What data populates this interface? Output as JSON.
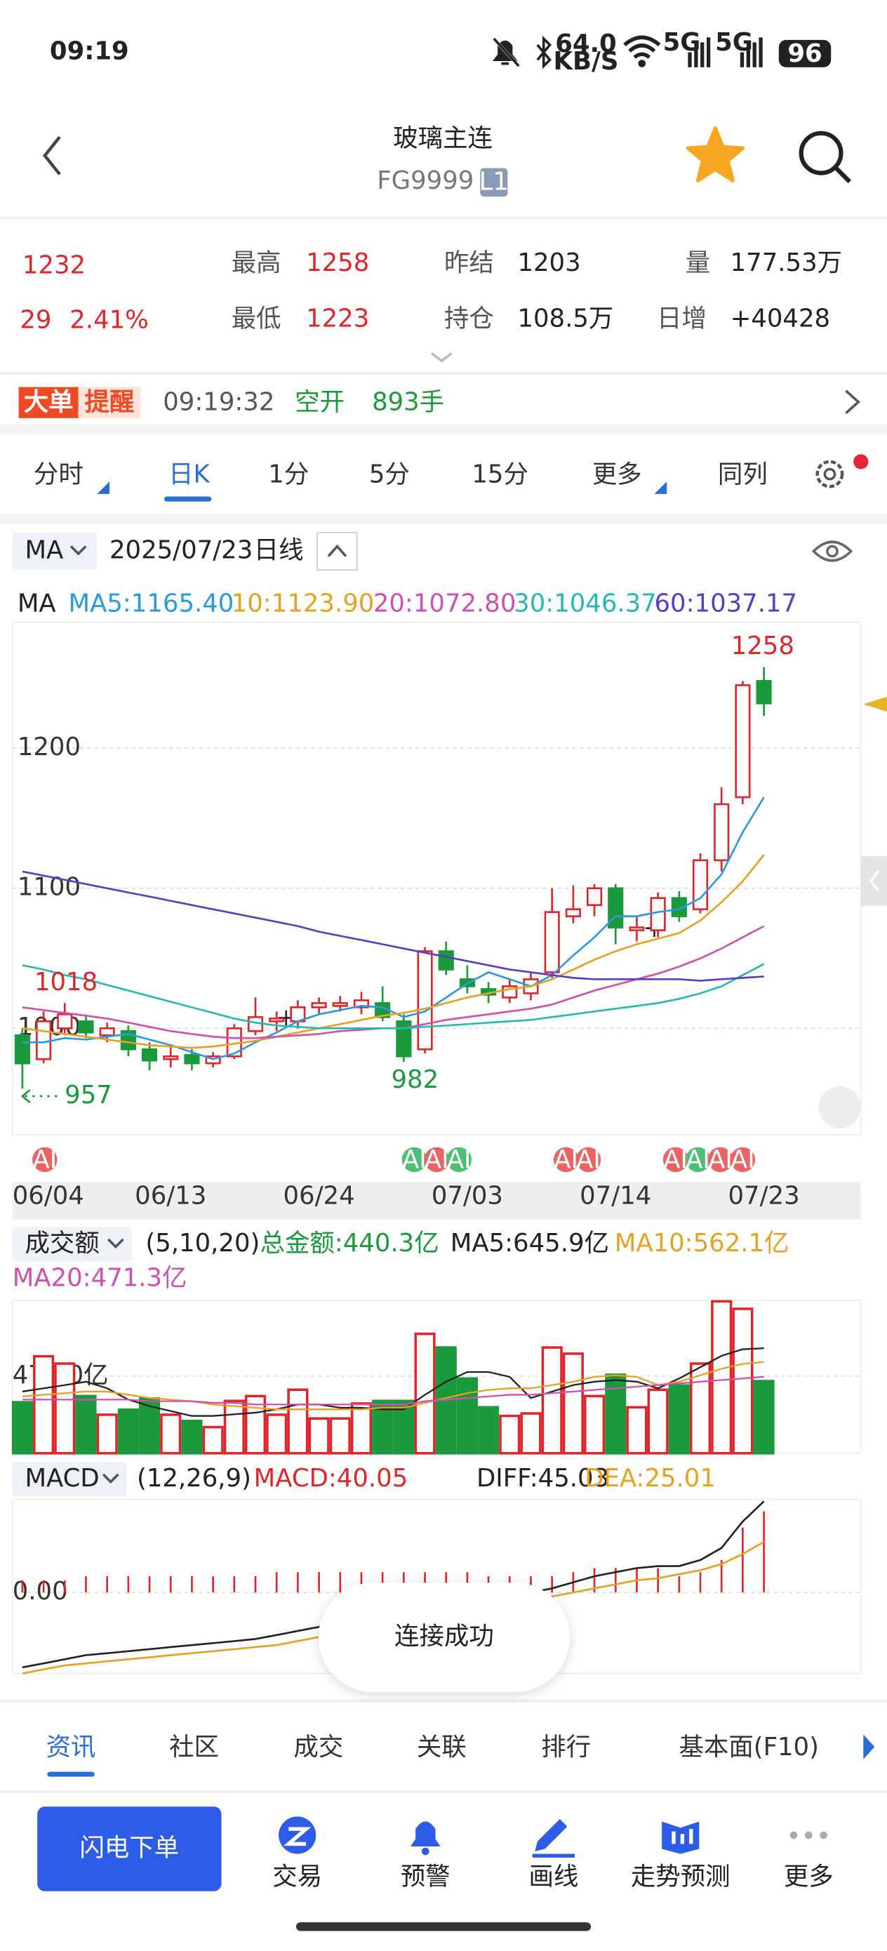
{
  "status": {
    "time": "09:19",
    "speed": "64.0",
    "speed_unit": "KB/S",
    "net1": "5G",
    "net2": "5G",
    "battery": "96"
  },
  "header": {
    "title": "玻璃主连",
    "code": "FG9999",
    "badge": "L1"
  },
  "quote": {
    "price": "1232",
    "change": "29",
    "change_pct": "2.41%",
    "fields": [
      {
        "label": "最高",
        "value": "1258",
        "color": "#e0252b"
      },
      {
        "label": "最低",
        "value": "1223",
        "color": "#e0252b"
      },
      {
        "label": "昨结",
        "value": "1203",
        "color": "#222222"
      },
      {
        "label": "持仓",
        "value": "108.5万",
        "color": "#222222"
      },
      {
        "label": "量",
        "value": "177.53万",
        "color": "#222222"
      },
      {
        "label": "日增",
        "value": "+40428",
        "color": "#222222"
      }
    ]
  },
  "alert": {
    "tag1": "大单",
    "tag2": "提醒",
    "time": "09:19:32",
    "action": "空开",
    "volume": "893手"
  },
  "periods": {
    "items": [
      "分时",
      "日K",
      "1分",
      "5分",
      "15分",
      "更多",
      "同列"
    ],
    "active": 1
  },
  "kline_bar": {
    "indicator": "MA",
    "date": "2025/07/23",
    "kind": "日线",
    "legend_label": "MA"
  },
  "chart_data": [
    {
      "type": "candlestick",
      "up_color": "#e0252b",
      "down_color": "#1a9a3c",
      "grid": true,
      "categories": [
        "06/04",
        null,
        null,
        null,
        null,
        null,
        null,
        "06/13",
        null,
        null,
        null,
        null,
        null,
        null,
        "06/24",
        null,
        null,
        null,
        null,
        null,
        null,
        "07/03",
        null,
        null,
        null,
        null,
        null,
        null,
        "07/14",
        null,
        null,
        null,
        null,
        null,
        null,
        "07/23"
      ],
      "candles": [
        {
          "open": 995,
          "high": 1000,
          "low": 957,
          "close": 975
        },
        {
          "open": 978,
          "high": 1012,
          "low": 975,
          "close": 1005
        },
        {
          "open": 1000,
          "high": 1018,
          "low": 995,
          "close": 1010
        },
        {
          "open": 1005,
          "high": 1010,
          "low": 993,
          "close": 997
        },
        {
          "open": 995,
          "high": 1004,
          "low": 990,
          "close": 1000
        },
        {
          "open": 998,
          "high": 1002,
          "low": 980,
          "close": 985
        },
        {
          "open": 985,
          "high": 990,
          "low": 970,
          "close": 977
        },
        {
          "open": 978,
          "high": 988,
          "low": 972,
          "close": 980
        },
        {
          "open": 981,
          "high": 985,
          "low": 970,
          "close": 975
        },
        {
          "open": 975,
          "high": 983,
          "low": 972,
          "close": 980
        },
        {
          "open": 980,
          "high": 1003,
          "low": 978,
          "close": 1000
        },
        {
          "open": 998,
          "high": 1022,
          "low": 995,
          "close": 1008
        },
        {
          "open": 1005,
          "high": 1012,
          "low": 998,
          "close": 1007
        },
        {
          "open": 1005,
          "high": 1020,
          "low": 1000,
          "close": 1015
        },
        {
          "open": 1015,
          "high": 1022,
          "low": 1010,
          "close": 1018
        },
        {
          "open": 1016,
          "high": 1023,
          "low": 1012,
          "close": 1018
        },
        {
          "open": 1015,
          "high": 1026,
          "low": 1010,
          "close": 1020
        },
        {
          "open": 1018,
          "high": 1030,
          "low": 1005,
          "close": 1008
        },
        {
          "open": 1005,
          "high": 1010,
          "low": 976,
          "close": 980
        },
        {
          "open": 985,
          "high": 1058,
          "low": 982,
          "close": 1055
        },
        {
          "open": 1055,
          "high": 1062,
          "low": 1038,
          "close": 1042
        },
        {
          "open": 1035,
          "high": 1045,
          "low": 1025,
          "close": 1030
        },
        {
          "open": 1028,
          "high": 1033,
          "low": 1018,
          "close": 1024
        },
        {
          "open": 1022,
          "high": 1035,
          "low": 1018,
          "close": 1030
        },
        {
          "open": 1025,
          "high": 1040,
          "low": 1020,
          "close": 1035
        },
        {
          "open": 1040,
          "high": 1100,
          "low": 1036,
          "close": 1083
        },
        {
          "open": 1080,
          "high": 1102,
          "low": 1075,
          "close": 1085
        },
        {
          "open": 1088,
          "high": 1103,
          "low": 1080,
          "close": 1100
        },
        {
          "open": 1100,
          "high": 1103,
          "low": 1060,
          "close": 1072
        },
        {
          "open": 1070,
          "high": 1080,
          "low": 1062,
          "close": 1072
        },
        {
          "open": 1070,
          "high": 1097,
          "low": 1065,
          "close": 1093
        },
        {
          "open": 1093,
          "high": 1098,
          "low": 1076,
          "close": 1080
        },
        {
          "open": 1085,
          "high": 1125,
          "low": 1082,
          "close": 1120
        },
        {
          "open": 1120,
          "high": 1172,
          "low": 1112,
          "close": 1160
        },
        {
          "open": 1165,
          "high": 1248,
          "low": 1160,
          "close": 1245
        },
        {
          "open": 1248,
          "high": 1258,
          "low": 1223,
          "close": 1232
        }
      ],
      "series": [
        {
          "name": "MA5:1165.40",
          "color": "#2a9ae0",
          "values": [
            990,
            990,
            993,
            992,
            994,
            996,
            992,
            988,
            983,
            978,
            982,
            990,
            997,
            1005,
            1010,
            1013,
            1016,
            1015,
            1008,
            1012,
            1022,
            1032,
            1040,
            1035,
            1030,
            1038,
            1052,
            1065,
            1080,
            1080,
            1083,
            1085,
            1093,
            1110,
            1140,
            1165
          ]
        },
        {
          "name": "10:1123.90",
          "color": "#e8a020",
          "values": [
            1000,
            998,
            996,
            994,
            992,
            990,
            988,
            987,
            986,
            987,
            989,
            991,
            994,
            997,
            1000,
            1003,
            1006,
            1009,
            1011,
            1014,
            1018,
            1022,
            1025,
            1028,
            1030,
            1035,
            1042,
            1049,
            1055,
            1060,
            1064,
            1068,
            1077,
            1090,
            1105,
            1124
          ]
        },
        {
          "name": "20:1072.80",
          "color": "#d14fb0",
          "values": [
            1015,
            1013,
            1011,
            1009,
            1007,
            1004,
            1001,
            998,
            996,
            994,
            993,
            993,
            994,
            995,
            996,
            998,
            999,
            1000,
            1000,
            1003,
            1006,
            1008,
            1010,
            1012,
            1014,
            1017,
            1022,
            1027,
            1031,
            1035,
            1039,
            1044,
            1050,
            1057,
            1065,
            1073
          ]
        },
        {
          "name": "30:1046.37",
          "color": "#27b9b0",
          "values": [
            1045,
            1042,
            1038,
            1035,
            1031,
            1027,
            1023,
            1019,
            1015,
            1011,
            1007,
            1004,
            1002,
            1001,
            1000,
            1000,
            1000,
            1000,
            1000,
            1001,
            1002,
            1003,
            1004,
            1005,
            1006,
            1008,
            1010,
            1012,
            1014,
            1016,
            1018,
            1021,
            1025,
            1030,
            1038,
            1046
          ]
        },
        {
          "name": "60:1037.17",
          "color": "#5a3cc8",
          "values": [
            1112,
            1109,
            1106,
            1103,
            1100,
            1097,
            1094,
            1091,
            1088,
            1085,
            1082,
            1079,
            1076,
            1073,
            1069,
            1066,
            1063,
            1060,
            1057,
            1054,
            1051,
            1048,
            1045,
            1042,
            1040,
            1038,
            1036,
            1035,
            1035,
            1035,
            1035,
            1035,
            1034,
            1035,
            1036,
            1037
          ]
        }
      ],
      "ylim": [
        924,
        1290
      ],
      "yticks": [
        1000,
        1100,
        1200
      ],
      "ai_badges": [
        {
          "label": "AI",
          "color": "#ea6464"
        },
        {
          "label": "AI",
          "color": "#4fbf78"
        },
        {
          "label": "AI",
          "color": "#ea6464"
        },
        {
          "label": "AI",
          "color": "#4fbf78"
        },
        {
          "label": "AI",
          "color": "#ea6464"
        },
        {
          "label": "AI",
          "color": "#ea6464"
        },
        {
          "label": "AI",
          "color": "#ea6464"
        },
        {
          "label": "AI",
          "color": "#4fbf78"
        },
        {
          "label": "AI",
          "color": "#ea6464"
        },
        {
          "label": "AI",
          "color": "#ea6464"
        }
      ]
    },
    {
      "type": "bar",
      "title": "成交额",
      "params": "(5,10,20)",
      "total": "总金额:440.3亿",
      "values": [
        314,
        597,
        552,
        352,
        237,
        268,
        337,
        237,
        199,
        161,
        322,
        352,
        237,
        391,
        214,
        214,
        306,
        322,
        322,
        735,
        651,
        460,
        283,
        230,
        245,
        651,
        613,
        352,
        483,
        283,
        391,
        417,
        552,
        935,
        889,
        444
      ],
      "series": [
        {
          "name": "MA5:645.9亿",
          "color": "#222222",
          "values": [
            380,
            400,
            420,
            440,
            400,
            330,
            290,
            260,
            230,
            230,
            240,
            250,
            270,
            300,
            300,
            280,
            280,
            270,
            270,
            360,
            440,
            500,
            500,
            470,
            340,
            380,
            420,
            440,
            450,
            440,
            400,
            460,
            530,
            600,
            640,
            646
          ]
        },
        {
          "name": "MA10:562.1亿",
          "color": "#e8a020",
          "values": [
            350,
            360,
            370,
            380,
            380,
            360,
            340,
            330,
            320,
            300,
            290,
            280,
            270,
            270,
            270,
            270,
            270,
            280,
            280,
            310,
            340,
            370,
            390,
            400,
            400,
            420,
            440,
            470,
            480,
            470,
            420,
            440,
            480,
            520,
            550,
            562
          ]
        },
        {
          "name": "MA20:471.3亿",
          "color": "#d14fb0",
          "values": [
            330,
            330,
            330,
            330,
            330,
            330,
            320,
            320,
            320,
            310,
            310,
            300,
            300,
            300,
            300,
            300,
            300,
            300,
            300,
            320,
            330,
            340,
            350,
            360,
            360,
            370,
            380,
            390,
            400,
            410,
            420,
            430,
            440,
            450,
            460,
            471
          ]
        }
      ],
      "ylim": [
        0,
        942
      ],
      "yticks": [
        {
          "value": 475,
          "label": "475.0亿"
        }
      ]
    },
    {
      "type": "macd",
      "title": "MACD",
      "params": "(12,26,9)",
      "series": [
        {
          "name": "MACD:40.05",
          "color": "#e0252b",
          "values": [
            6,
            6,
            6,
            8,
            8,
            8,
            8,
            8,
            8,
            8,
            8,
            8,
            10,
            10,
            10,
            10,
            10,
            10,
            10,
            10,
            10,
            10,
            8,
            8,
            8,
            8,
            10,
            12,
            12,
            12,
            12,
            8,
            10,
            16,
            32,
            40.05
          ]
        },
        {
          "name": "DIFF:45.03",
          "color": "#222222",
          "values": [
            -37,
            -35,
            -33,
            -31,
            -30,
            -29,
            -28,
            -27,
            -26,
            -25,
            -24,
            -23,
            -21,
            -19,
            -17,
            -15,
            -13,
            -11,
            -9,
            -7,
            -5,
            -3,
            -2,
            -1,
            0,
            2,
            5,
            8,
            10,
            12,
            13,
            13,
            16,
            22,
            35,
            45.03
          ]
        },
        {
          "name": "DEA:25.01",
          "color": "#e8a020",
          "values": [
            -40,
            -38,
            -36,
            -35,
            -34,
            -33,
            -32,
            -31,
            -30,
            -29,
            -28,
            -27,
            -26,
            -24,
            -22,
            -20,
            -18,
            -16,
            -14,
            -12,
            -10,
            -8,
            -6,
            -5,
            -4,
            -2,
            0,
            2,
            4,
            6,
            7,
            9,
            11,
            14,
            19,
            25.01
          ]
        }
      ],
      "ylim": [
        -40,
        46
      ],
      "yticks": [
        {
          "value": 0,
          "label": "0.00"
        }
      ]
    }
  ],
  "toast": "连接成功",
  "tabs": {
    "items": [
      "资讯",
      "社区",
      "成交",
      "关联",
      "排行",
      "基本面(F10)"
    ],
    "active": 0
  },
  "bottom": {
    "button": "闪电下单",
    "items": [
      "交易",
      "预警",
      "画线",
      "走势预测",
      "更多"
    ]
  }
}
